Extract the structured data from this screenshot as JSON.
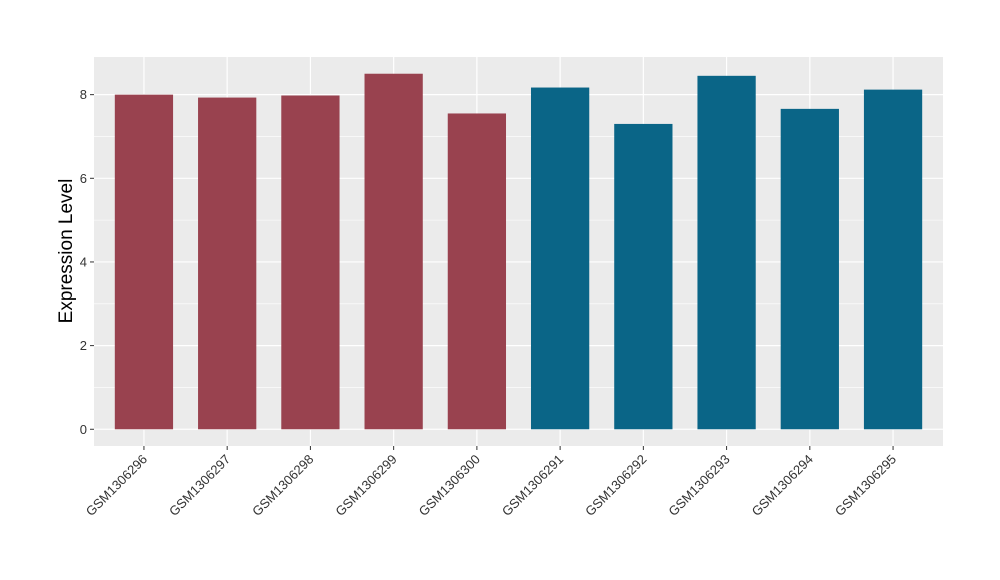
{
  "chart_data": {
    "type": "bar",
    "title": "",
    "xlabel": "",
    "ylabel": "Expression Level",
    "categories": [
      "GSM1306296",
      "GSM1306297",
      "GSM1306298",
      "GSM1306299",
      "GSM1306300",
      "GSM1306291",
      "GSM1306292",
      "GSM1306293",
      "GSM1306294",
      "GSM1306295"
    ],
    "values": [
      8.0,
      7.93,
      7.98,
      8.5,
      7.55,
      8.17,
      7.3,
      8.45,
      7.66,
      8.12
    ],
    "bar_colors": [
      "#99424f",
      "#99424f",
      "#99424f",
      "#99424f",
      "#99424f",
      "#0a6587",
      "#0a6587",
      "#0a6587",
      "#0a6587",
      "#0a6587"
    ],
    "ylim": [
      -0.4,
      8.9
    ],
    "yticks": [
      0,
      2,
      4,
      6,
      8
    ],
    "grid": true,
    "legend": "none",
    "panel_background": "#ebebeb",
    "grid_color": "#ffffff"
  }
}
